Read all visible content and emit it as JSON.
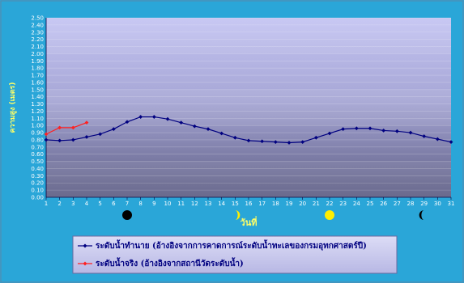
{
  "chart_data": {
    "type": "line",
    "xlabel": "วันที่",
    "ylabel": "ความสูง (เมตร)",
    "ylim": [
      0,
      2.5
    ],
    "y_step": 0.1,
    "x": [
      1,
      2,
      3,
      4,
      5,
      6,
      7,
      8,
      9,
      10,
      11,
      12,
      13,
      14,
      15,
      16,
      17,
      18,
      19,
      20,
      21,
      22,
      23,
      24,
      25,
      26,
      27,
      28,
      29,
      30,
      31
    ],
    "x_tick_labels": [
      "1",
      "2",
      "3",
      "4",
      "5",
      "6",
      "7",
      "8",
      "9",
      "10",
      "11",
      "12",
      "13",
      "14",
      "15",
      "16",
      "17",
      "18",
      "19",
      "20",
      "21",
      "22",
      "23",
      "24",
      "25",
      "26",
      "27",
      "28",
      "29",
      "30",
      "31"
    ],
    "y_tick_labels": [
      "0.00",
      "0.10",
      "0.20",
      "0.30",
      "0.40",
      "0.50",
      "0.60",
      "0.70",
      "0.80",
      "0.90",
      "1.00",
      "1.10",
      "1.20",
      "1.30",
      "1.40",
      "1.50",
      "1.60",
      "1.70",
      "1.80",
      "1.90",
      "2.00",
      "2.10",
      "2.20",
      "2.30",
      "2.40",
      "2.50"
    ],
    "grid": true,
    "legend_position": "bottom",
    "series": [
      {
        "name": "ระดับน้ำทำนาย (อ้างอิงจากการคาดการณ์ระดับน้ำทะเลของกรมอุทกศาสตร์ปี)",
        "color": "#000080",
        "x": [
          1,
          2,
          3,
          4,
          5,
          6,
          7,
          8,
          9,
          10,
          11,
          12,
          13,
          14,
          15,
          16,
          17,
          18,
          19,
          20,
          21,
          22,
          23,
          24,
          25,
          26,
          27,
          28,
          29,
          30,
          31
        ],
        "values": [
          0.8,
          0.79,
          0.8,
          0.84,
          0.88,
          0.95,
          1.05,
          1.12,
          1.12,
          1.09,
          1.04,
          0.99,
          0.95,
          0.89,
          0.83,
          0.79,
          0.78,
          0.77,
          0.76,
          0.77,
          0.83,
          0.89,
          0.95,
          0.96,
          0.96,
          0.93,
          0.92,
          0.9,
          0.85,
          0.81,
          0.77
        ]
      },
      {
        "name": "ระดับน้ำจริง (อ้างอิงจากสถานีวัดระดับน้ำ)",
        "color": "#ff2020",
        "x": [
          1,
          2,
          3,
          4
        ],
        "values": [
          0.88,
          0.97,
          0.97,
          1.04
        ]
      }
    ],
    "moon_phases": [
      {
        "day": 7,
        "phase": "new-moon-icon"
      },
      {
        "day": 15,
        "phase": "first-quarter-icon"
      },
      {
        "day": 22,
        "phase": "full-moon-icon"
      },
      {
        "day": 29,
        "phase": "last-quarter-icon"
      }
    ]
  }
}
